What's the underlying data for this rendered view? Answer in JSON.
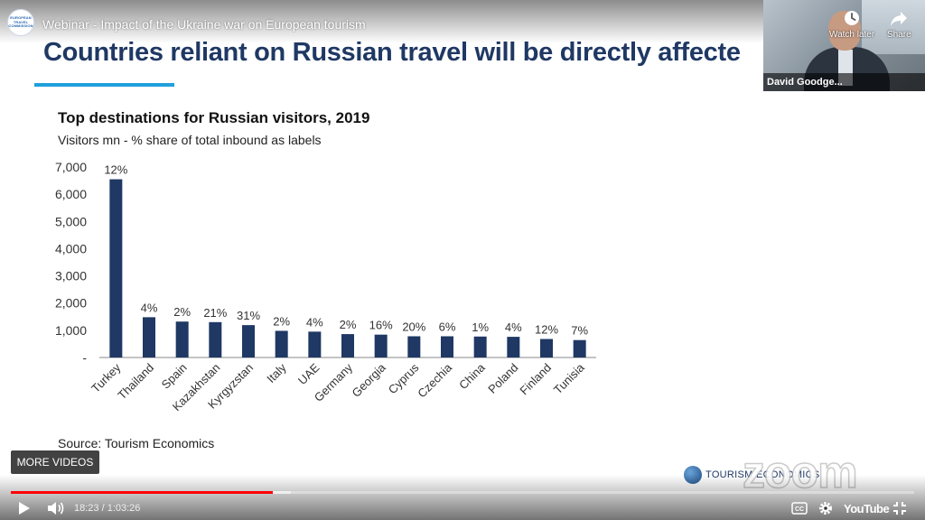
{
  "player": {
    "video_title": "Webinar - Impact of the Ukraine war on European tourism",
    "channel_logo_lines": [
      "EUROPEAN",
      "TRAVEL",
      "COMMISSION"
    ],
    "watch_later_label": "Watch later",
    "share_label": "Share",
    "more_videos_label": "MORE VIDEOS",
    "current_time": "18:23",
    "duration": "1:03:26",
    "played_fraction": 0.29,
    "buffered_fraction": 0.31,
    "youtube_label": "YouTube",
    "cc_label": "CC"
  },
  "webcam": {
    "name": "David Goodge..."
  },
  "slide": {
    "heading": "Countries reliant on Russian travel will be directly affecte",
    "source": "Source: Tourism Economics",
    "brand": "TOURISM ECONOMICS",
    "watermark": "zoom",
    "accent_color": "#1fa0db",
    "heading_color": "#1f3864"
  },
  "chart_data": {
    "type": "bar",
    "title": "Top destinations for Russian visitors, 2019",
    "subtitle": "Visitors mn  - % share of total inbound as labels",
    "categories": [
      "Turkey",
      "Thailand",
      "Spain",
      "Kazakhstan",
      "Kyrgyzstan",
      "Italy",
      "UAE",
      "Germany",
      "Georgia",
      "Cyprus",
      "Czechia",
      "China",
      "Poland",
      "Finland",
      "Tunisia"
    ],
    "values": [
      6550,
      1480,
      1320,
      1300,
      1190,
      980,
      950,
      860,
      840,
      780,
      780,
      770,
      760,
      680,
      640
    ],
    "data_labels": [
      "12%",
      "4%",
      "2%",
      "21%",
      "31%",
      "2%",
      "4%",
      "2%",
      "16%",
      "20%",
      "6%",
      "1%",
      "4%",
      "12%",
      "7%"
    ],
    "yticks": [
      "-",
      "1,000",
      "2,000",
      "3,000",
      "4,000",
      "5,000",
      "6,000",
      "7,000"
    ],
    "ylim": [
      0,
      7000
    ],
    "bar_color": "#1f3864",
    "grid": false,
    "legend": "none"
  }
}
